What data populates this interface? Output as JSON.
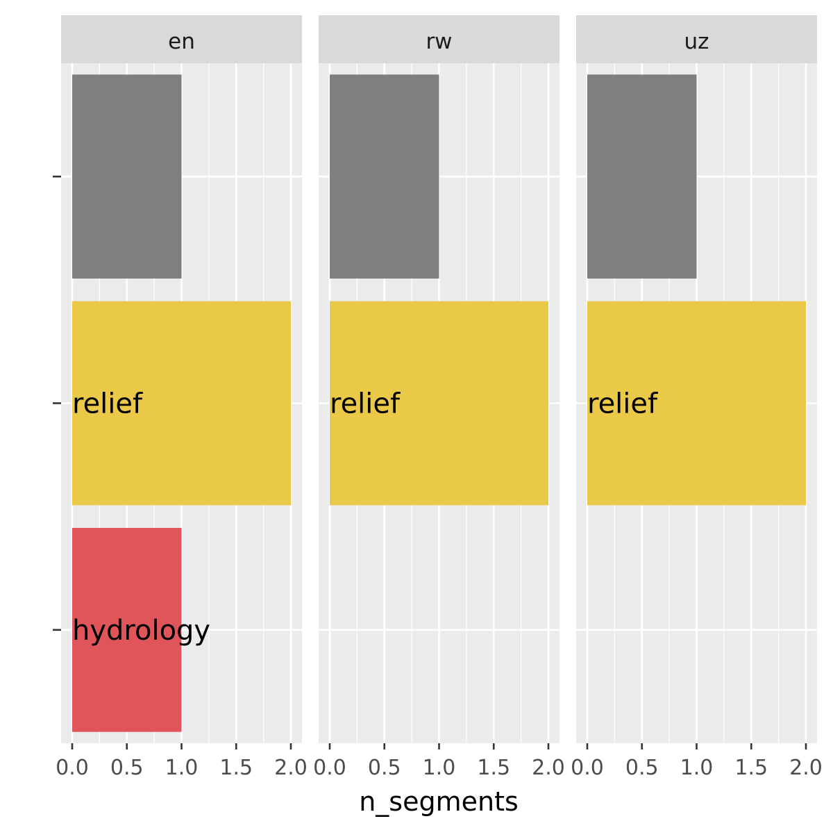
{
  "chart_data": {
    "type": "bar",
    "orientation": "horizontal",
    "facet_by": [
      "en",
      "rw",
      "uz"
    ],
    "xlabel": "n_segments",
    "ylabel": "",
    "xlim": [
      0,
      2
    ],
    "x_ticks": [
      "0.0",
      "0.5",
      "1.0",
      "1.5",
      "2.0"
    ],
    "categories": [
      "",
      "relief",
      "hydrology"
    ],
    "category_colors": [
      "#7f7f7f",
      "#ebc948",
      "#e0555a"
    ],
    "panel_background": "#ebebeb",
    "strip_background": "#d9d9d9",
    "grid": true,
    "legend": "none",
    "facets": [
      {
        "name": "en",
        "values": [
          1,
          2,
          1
        ],
        "labels": [
          "",
          "relief",
          "hydrology"
        ]
      },
      {
        "name": "rw",
        "values": [
          1,
          2,
          null
        ],
        "labels": [
          "",
          "relief",
          ""
        ]
      },
      {
        "name": "uz",
        "values": [
          1,
          2,
          null
        ],
        "labels": [
          "",
          "relief",
          ""
        ]
      }
    ]
  }
}
